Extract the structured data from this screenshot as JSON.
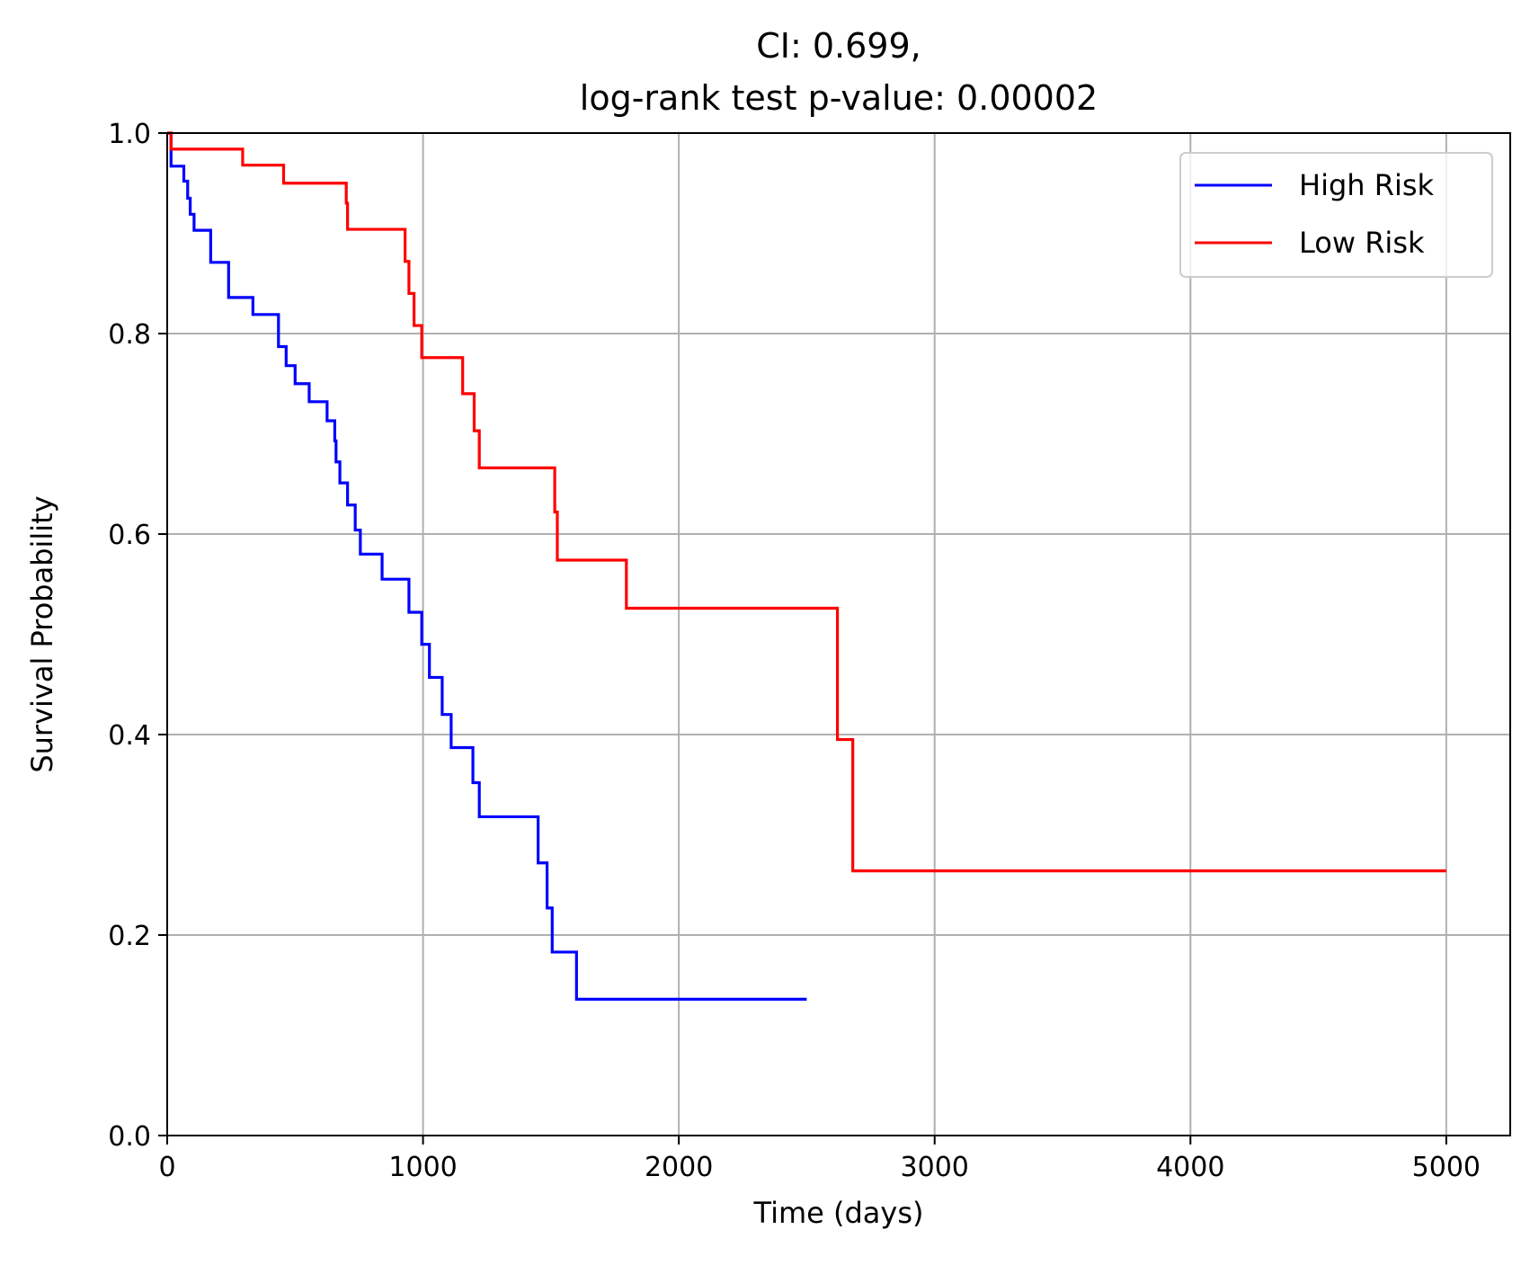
{
  "chart_data": {
    "type": "line",
    "title_lines": [
      "CI: 0.699,",
      "log-rank test p-value: 0.00002"
    ],
    "xlabel": "Time (days)",
    "ylabel": "Survival Probability",
    "xlim": [
      0,
      5250
    ],
    "ylim": [
      0,
      1
    ],
    "xticks": [
      0,
      1000,
      2000,
      3000,
      4000,
      5000
    ],
    "xtick_labels": [
      "0",
      "1000",
      "2000",
      "3000",
      "4000",
      "5000"
    ],
    "yticks": [
      0,
      0.2,
      0.4,
      0.6,
      0.8,
      1.0
    ],
    "ytick_labels": [
      "0.0",
      "0.2",
      "0.4",
      "0.6",
      "0.8",
      "1.0"
    ],
    "grid": true,
    "legend_position": "top-right",
    "step": true,
    "series": [
      {
        "name": "High Risk",
        "color": "#0000ff",
        "x": [
          0,
          15,
          65,
          80,
          90,
          105,
          125,
          170,
          240,
          300,
          335,
          435,
          465,
          500,
          555,
          625,
          655,
          660,
          675,
          705,
          735,
          755,
          840,
          945,
          995,
          1025,
          1075,
          1110,
          1195,
          1220,
          1450,
          1485,
          1505,
          1535,
          1600,
          2500
        ],
        "y": [
          1.0,
          0.967,
          0.952,
          0.935,
          0.919,
          0.903,
          0.903,
          0.871,
          0.836,
          0.836,
          0.819,
          0.787,
          0.768,
          0.75,
          0.732,
          0.713,
          0.693,
          0.672,
          0.651,
          0.629,
          0.604,
          0.58,
          0.555,
          0.522,
          0.49,
          0.457,
          0.42,
          0.387,
          0.352,
          0.318,
          0.272,
          0.227,
          0.183,
          0.183,
          0.136,
          0.136
        ]
      },
      {
        "name": "Low Risk",
        "color": "#ff0000",
        "x": [
          0,
          15,
          295,
          455,
          700,
          705,
          920,
          930,
          945,
          965,
          995,
          1155,
          1200,
          1220,
          1515,
          1525,
          1795,
          2620,
          2680,
          5000
        ],
        "y": [
          1.0,
          0.984,
          0.968,
          0.95,
          0.93,
          0.904,
          0.904,
          0.872,
          0.84,
          0.808,
          0.776,
          0.74,
          0.703,
          0.666,
          0.622,
          0.574,
          0.526,
          0.395,
          0.264,
          0.264
        ]
      }
    ]
  }
}
